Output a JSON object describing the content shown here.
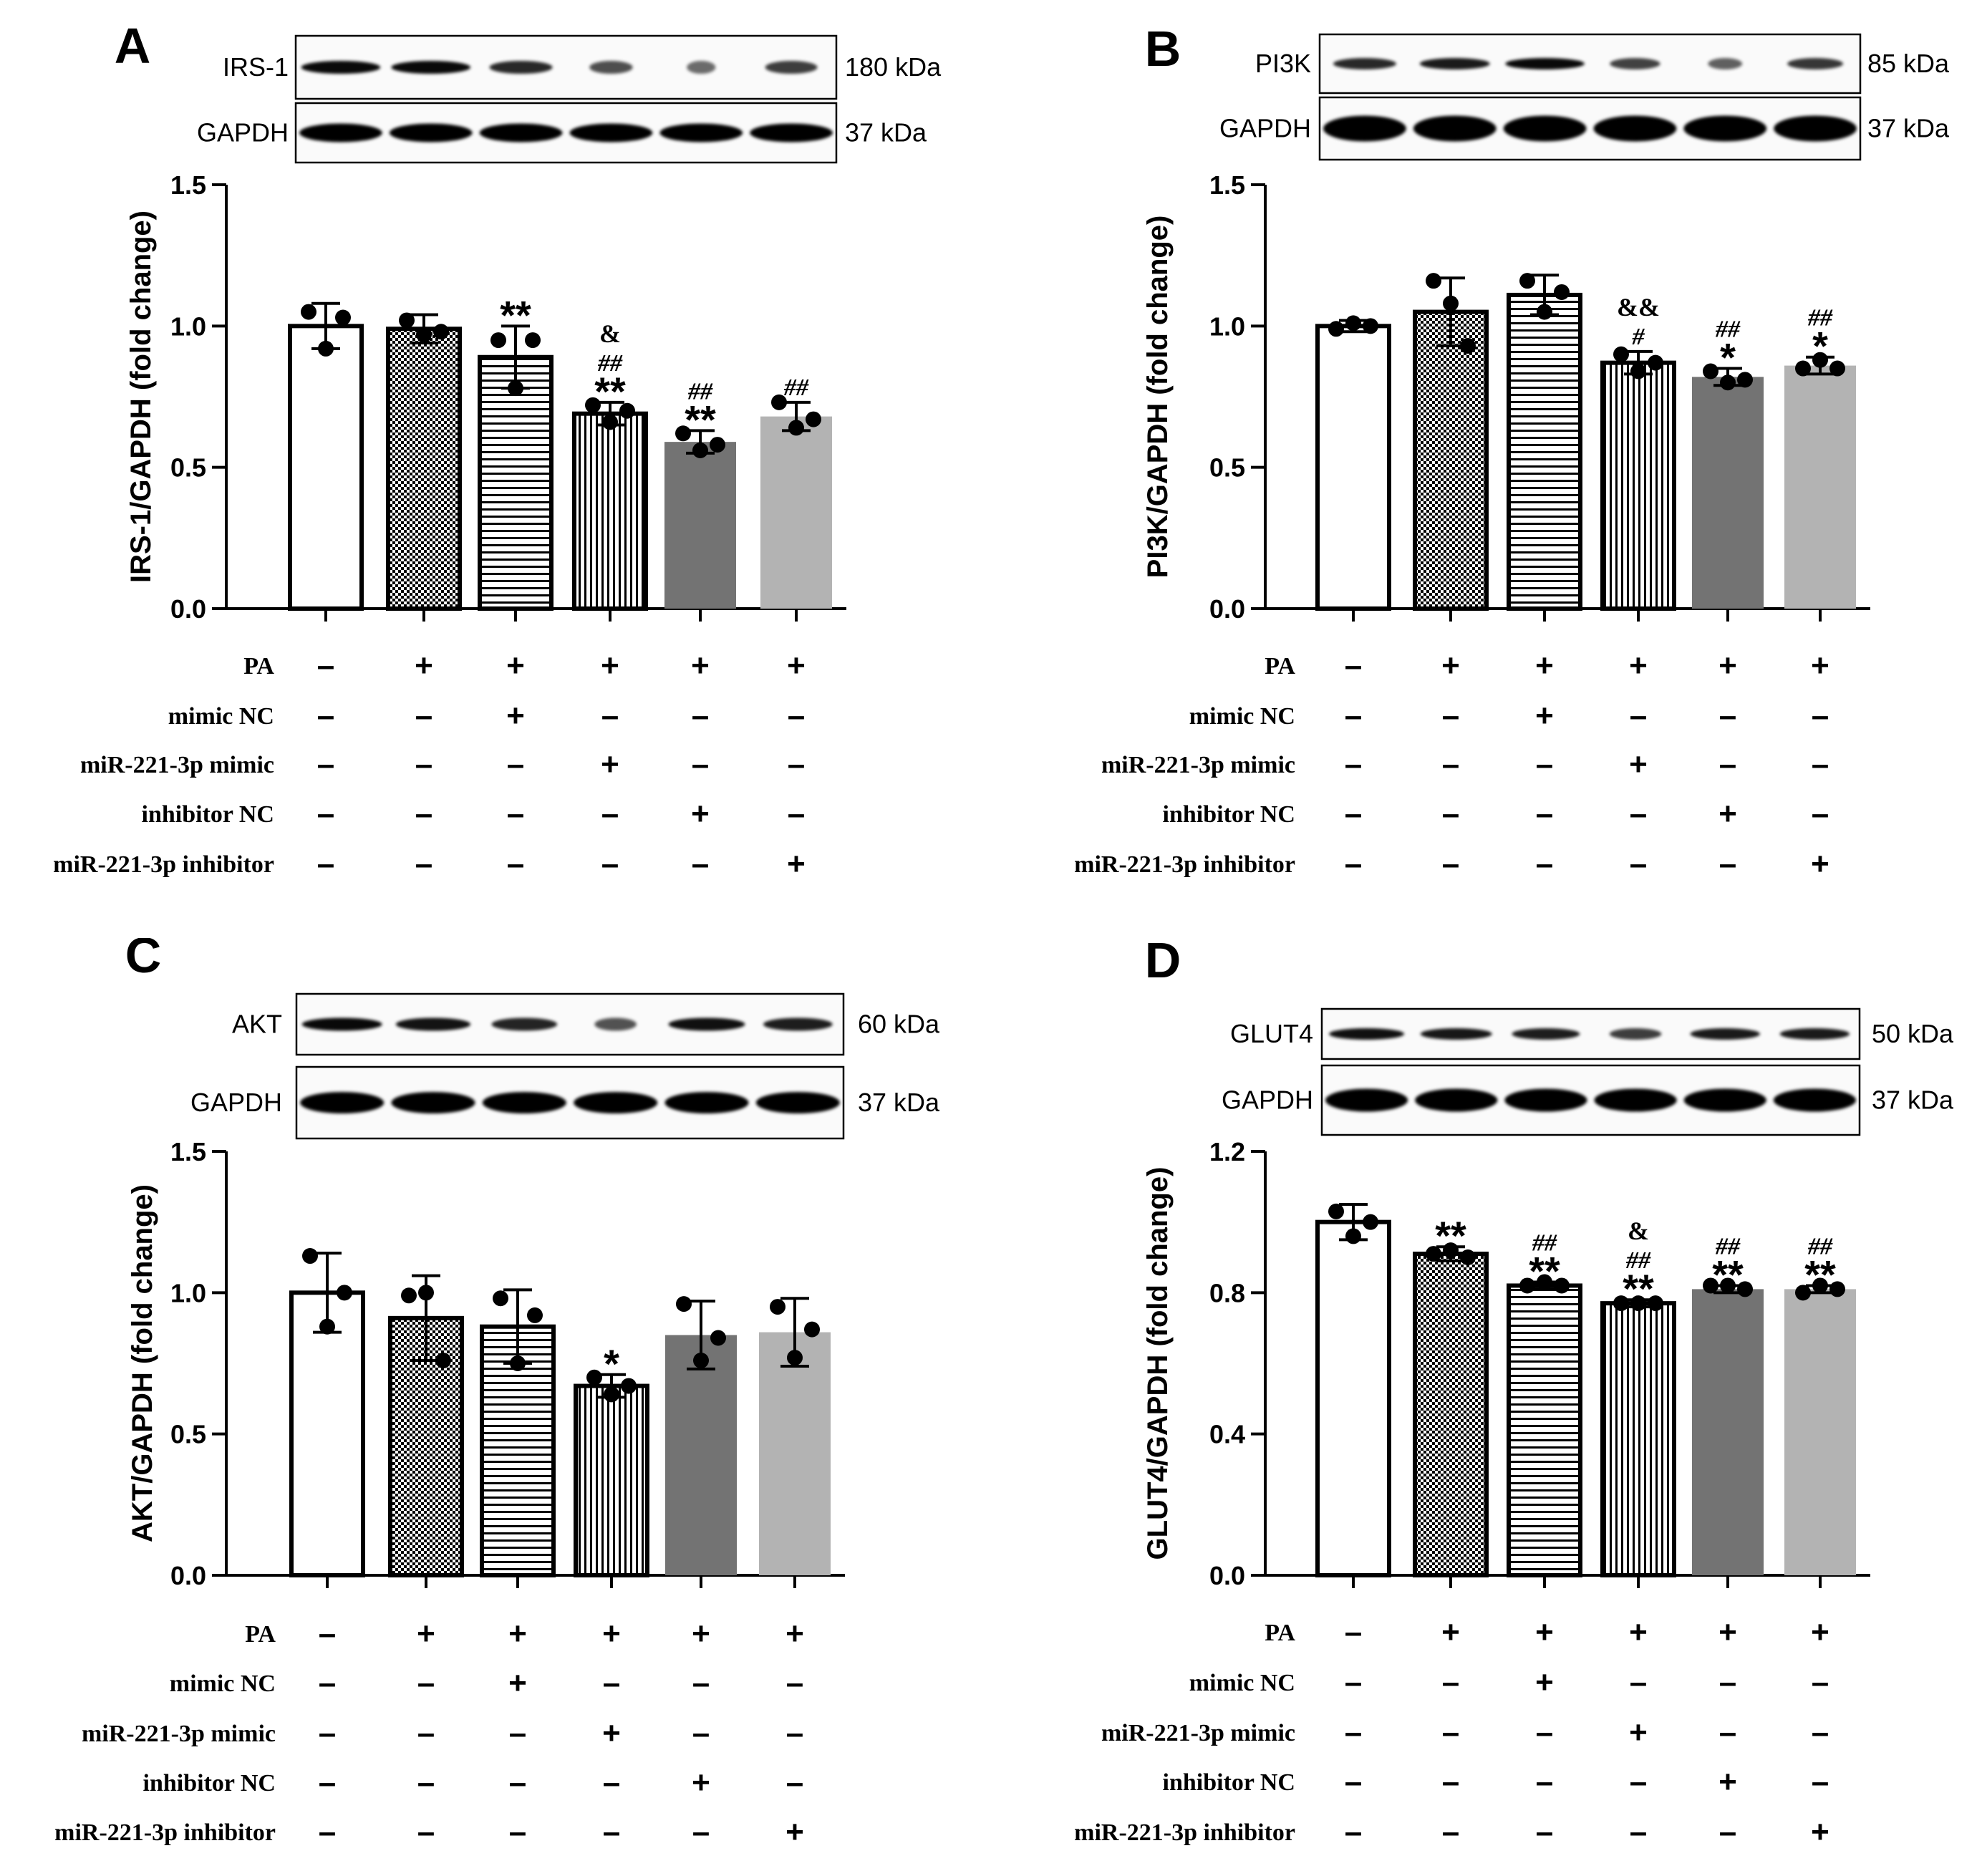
{
  "figure": {
    "conditions": [
      "PA",
      "mimic NC",
      "miR-221-3p mimic",
      "inhibitor NC",
      "miR-221-3p inhibitor"
    ],
    "design": [
      [
        "-",
        "+",
        "+",
        "+",
        "+",
        "+"
      ],
      [
        "-",
        "-",
        "+",
        "-",
        "-",
        "-"
      ],
      [
        "-",
        "-",
        "-",
        "+",
        "-",
        "-"
      ],
      [
        "-",
        "-",
        "-",
        "-",
        "+",
        "-"
      ],
      [
        "-",
        "-",
        "-",
        "-",
        "-",
        "+"
      ]
    ],
    "bar_colors": [
      "#ffffff",
      "#ffffff",
      "#ffffff",
      "#ffffff",
      "#737373",
      "#b3b3b3"
    ]
  },
  "chart_data": [
    {
      "panel": "A",
      "type": "bar",
      "blot": {
        "protein": "IRS-1",
        "protein_kda": "180 kDa",
        "control": "GAPDH",
        "control_kda": "37 kDa"
      },
      "ylabel": "IRS-1/GAPDH (fold change)",
      "ylim": [
        0,
        1.5
      ],
      "yticks": [
        "0.0",
        "0.5",
        "1.0",
        "1.5"
      ],
      "ytick_values": [
        0,
        0.5,
        1.0,
        1.5
      ],
      "values": [
        1.0,
        0.99,
        0.89,
        0.69,
        0.59,
        0.68
      ],
      "errors": [
        0.08,
        0.05,
        0.11,
        0.04,
        0.04,
        0.05
      ],
      "points": [
        [
          1.05,
          0.92,
          1.03
        ],
        [
          1.02,
          0.97,
          0.98
        ],
        [
          0.95,
          0.78,
          0.95
        ],
        [
          0.72,
          0.66,
          0.7
        ],
        [
          0.62,
          0.56,
          0.58
        ],
        [
          0.73,
          0.64,
          0.67
        ]
      ],
      "sig": [
        [],
        [],
        [
          "**"
        ],
        [
          "&",
          "##",
          "**"
        ],
        [
          "##",
          "**"
        ],
        [
          "##"
        ]
      ]
    },
    {
      "panel": "B",
      "type": "bar",
      "blot": {
        "protein": "PI3K",
        "protein_kda": "85 kDa",
        "control": "GAPDH",
        "control_kda": "37 kDa"
      },
      "ylabel": "PI3K/GAPDH (fold change)",
      "ylim": [
        0,
        1.5
      ],
      "yticks": [
        "0.0",
        "0.5",
        "1.0",
        "1.5"
      ],
      "ytick_values": [
        0,
        0.5,
        1.0,
        1.5
      ],
      "values": [
        1.0,
        1.05,
        1.11,
        0.87,
        0.82,
        0.86
      ],
      "errors": [
        0.02,
        0.12,
        0.07,
        0.04,
        0.03,
        0.03
      ],
      "points": [
        [
          0.99,
          1.01,
          1.0
        ],
        [
          1.16,
          1.08,
          0.93
        ],
        [
          1.16,
          1.05,
          1.12
        ],
        [
          0.9,
          0.84,
          0.87
        ],
        [
          0.84,
          0.8,
          0.81
        ],
        [
          0.85,
          0.88,
          0.85
        ]
      ],
      "sig": [
        [],
        [],
        [],
        [
          "&&",
          "#"
        ],
        [
          "##",
          "*"
        ],
        [
          "##",
          "*"
        ]
      ]
    },
    {
      "panel": "C",
      "type": "bar",
      "blot": {
        "protein": "AKT",
        "protein_kda": "60 kDa",
        "control": "GAPDH",
        "control_kda": "37 kDa"
      },
      "ylabel": "AKT/GAPDH (fold change)",
      "ylim": [
        0,
        1.5
      ],
      "yticks": [
        "0.0",
        "0.5",
        "1.0",
        "1.5"
      ],
      "ytick_values": [
        0,
        0.5,
        1.0,
        1.5
      ],
      "values": [
        1.0,
        0.91,
        0.88,
        0.67,
        0.85,
        0.86
      ],
      "errors": [
        0.14,
        0.15,
        0.13,
        0.04,
        0.12,
        0.12
      ],
      "points": [
        [
          1.13,
          0.88,
          1.0
        ],
        [
          0.99,
          1.0,
          0.76
        ],
        [
          0.98,
          0.75,
          0.92
        ],
        [
          0.7,
          0.64,
          0.67
        ],
        [
          0.96,
          0.76,
          0.84
        ],
        [
          0.95,
          0.77,
          0.87
        ]
      ],
      "sig": [
        [],
        [],
        [],
        [
          "*"
        ],
        [],
        []
      ]
    },
    {
      "panel": "D",
      "type": "bar",
      "blot": {
        "protein": "GLUT4",
        "protein_kda": "50 kDa",
        "control": "GAPDH",
        "control_kda": "37 kDa"
      },
      "ylabel": "GLUT4/GAPDH (fold change)",
      "ylim": [
        0,
        1.2
      ],
      "yticks": [
        "0.0",
        "0.4",
        "0.8",
        "1.2"
      ],
      "ytick_values": [
        0,
        0.4,
        0.8,
        1.2
      ],
      "values": [
        1.0,
        0.91,
        0.82,
        0.77,
        0.81,
        0.81
      ],
      "errors": [
        0.05,
        0.02,
        0.01,
        0.01,
        0.01,
        0.01
      ],
      "points": [
        [
          1.03,
          0.96,
          1.0
        ],
        [
          0.91,
          0.92,
          0.9
        ],
        [
          0.82,
          0.83,
          0.82
        ],
        [
          0.77,
          0.77,
          0.77
        ],
        [
          0.82,
          0.82,
          0.81
        ],
        [
          0.8,
          0.82,
          0.81
        ]
      ],
      "sig": [
        [],
        [
          "**"
        ],
        [
          "##",
          "**"
        ],
        [
          "&",
          "##",
          "**"
        ],
        [
          "##",
          "**"
        ],
        [
          "##",
          "**"
        ]
      ]
    }
  ]
}
